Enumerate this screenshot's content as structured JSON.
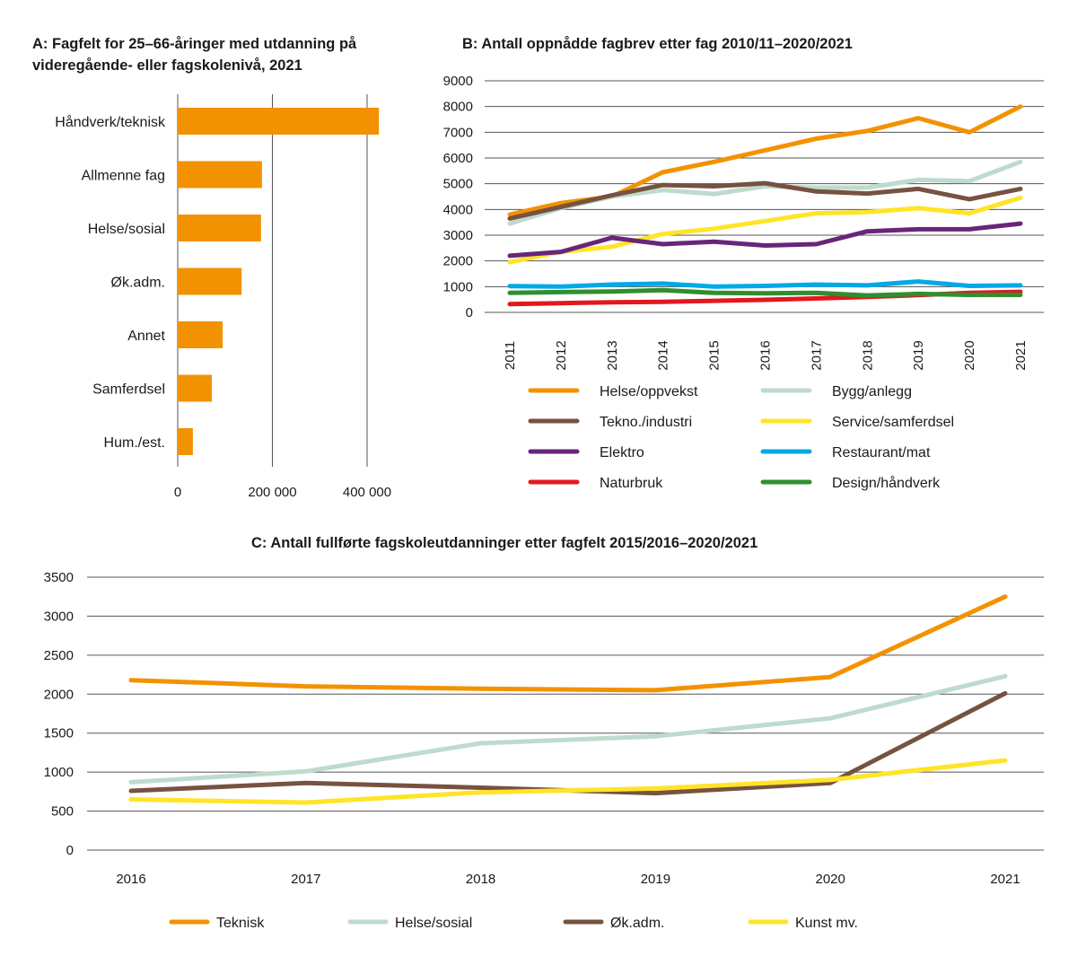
{
  "chart_data": [
    {
      "id": "A",
      "type": "bar",
      "orientation": "horizontal",
      "title": "A: Fagfelt for 25–66-åringer med utdanning på videregående- eller fagskolenivå, 2021",
      "title_lines": [
        "A: Fagfelt for 25–66-åringer med utdanning på",
        "videregående- eller fagskolenivå, 2021"
      ],
      "categories": [
        "Håndverk/teknisk",
        "Allmenne fag",
        "Helse/sosial",
        "Øk.adm.",
        "Annet",
        "Samferdsel",
        "Hum./est."
      ],
      "values": [
        425000,
        178000,
        176000,
        135000,
        95000,
        72000,
        32000
      ],
      "xlim": [
        0,
        450000
      ],
      "xticks": [
        0,
        200000,
        400000
      ],
      "xtick_labels": [
        "0",
        "200 000",
        "400 000"
      ],
      "grid": true,
      "color": "#F39200"
    },
    {
      "id": "B",
      "type": "line",
      "title": "B: Antall oppnådde fagbrev etter fag 2010/11–2020/2021",
      "x": [
        "2011",
        "2012",
        "2013",
        "2014",
        "2015",
        "2016",
        "2017",
        "2018",
        "2019",
        "2020",
        "2021"
      ],
      "ylim": [
        0,
        9000
      ],
      "yticks": [
        0,
        1000,
        2000,
        3000,
        4000,
        5000,
        6000,
        7000,
        8000,
        9000
      ],
      "grid": true,
      "legend_position": "bottom",
      "series": [
        {
          "name": "Helse/oppvekst",
          "color": "#F39200",
          "values": [
            3800,
            4250,
            4500,
            5450,
            5850,
            6300,
            6750,
            7050,
            7550,
            7000,
            8000
          ]
        },
        {
          "name": "Bygg/anlegg",
          "color": "#BEDBCB",
          "values": [
            3450,
            4050,
            4500,
            4750,
            4600,
            4900,
            4850,
            4850,
            5150,
            5100,
            5850
          ]
        },
        {
          "name": "Tekno./industri",
          "color": "#775241",
          "values": [
            3650,
            4100,
            4550,
            4950,
            4900,
            5020,
            4700,
            4620,
            4800,
            4400,
            4800
          ]
        },
        {
          "name": "Service/samferdsel",
          "color": "#FFE428",
          "values": [
            1950,
            2350,
            2550,
            3050,
            3250,
            3550,
            3850,
            3900,
            4050,
            3850,
            4450
          ]
        },
        {
          "name": "Elektro",
          "color": "#68257A",
          "values": [
            2200,
            2350,
            2900,
            2650,
            2750,
            2600,
            2650,
            3150,
            3230,
            3230,
            3450
          ]
        },
        {
          "name": "Restaurant/mat",
          "color": "#00A9E7",
          "values": [
            1020,
            1000,
            1080,
            1120,
            1000,
            1030,
            1080,
            1050,
            1200,
            1030,
            1050
          ]
        },
        {
          "name": "Naturbruk",
          "color": "#E2181F",
          "values": [
            320,
            360,
            390,
            410,
            450,
            490,
            540,
            600,
            670,
            760,
            800
          ]
        },
        {
          "name": "Design/håndverk",
          "color": "#2F8F2F",
          "values": [
            760,
            790,
            810,
            860,
            760,
            740,
            760,
            660,
            720,
            680,
            680
          ]
        }
      ]
    },
    {
      "id": "C",
      "type": "line",
      "title": "C: Antall fullførte fagskoleutdanninger etter fagfelt 2015/2016–2020/2021",
      "x": [
        "2016",
        "2017",
        "2018",
        "2019",
        "2020",
        "2021"
      ],
      "ylim": [
        0,
        3500
      ],
      "yticks": [
        0,
        500,
        1000,
        1500,
        2000,
        2500,
        3000,
        3500
      ],
      "grid": true,
      "legend_position": "bottom",
      "series": [
        {
          "name": "Teknisk",
          "color": "#F39200",
          "values": [
            2180,
            2100,
            2070,
            2050,
            2220,
            3250
          ]
        },
        {
          "name": "Helse/sosial",
          "color": "#BEDBCB",
          "values": [
            870,
            1010,
            1370,
            1460,
            1690,
            2230
          ]
        },
        {
          "name": "Øk.adm.",
          "color": "#775241",
          "values": [
            760,
            860,
            800,
            730,
            860,
            2010
          ]
        },
        {
          "name": "Kunst mv.",
          "color": "#FFE428",
          "values": [
            650,
            610,
            740,
            790,
            900,
            1150
          ]
        }
      ]
    }
  ]
}
